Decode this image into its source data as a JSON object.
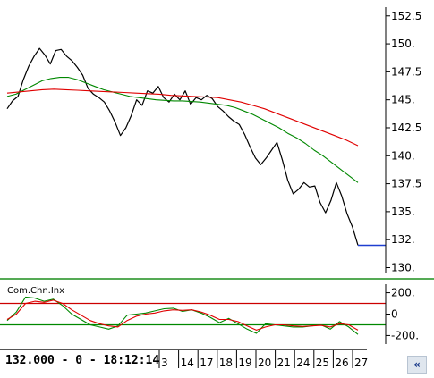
{
  "readout": "132.000 - 0 - 18:12:14",
  "nav_icon": "scroll-arrow-icon",
  "nav_glyph": "«",
  "chart_data": [
    {
      "type": "line",
      "panel": "price",
      "y_axis_side": "right",
      "y_ticks": [
        130,
        132.5,
        135,
        137.5,
        140,
        142.5,
        145,
        147.5,
        150,
        152.5
      ],
      "y_tick_labels": [
        "130.",
        "132.",
        "135.",
        "137.5",
        "140.",
        "142.5",
        "145.",
        "147.5",
        "150.",
        "152.5"
      ],
      "ylim": [
        129.4,
        153.6
      ],
      "last_price": 132.0,
      "grid": false,
      "series": [
        {
          "color": "#000000",
          "values": [
            144.2,
            144.9,
            145.3,
            146.8,
            148.0,
            148.9,
            149.6,
            149.0,
            148.2,
            149.4,
            149.5,
            148.9,
            148.5,
            147.9,
            147.2,
            146.0,
            145.5,
            145.2,
            144.8,
            144.0,
            143.0,
            141.8,
            142.5,
            143.6,
            145.0,
            144.5,
            145.8,
            145.6,
            146.2,
            145.2,
            144.8,
            145.5,
            145.0,
            145.8,
            144.6,
            145.2,
            145.0,
            145.4,
            145.1,
            144.4,
            144.0,
            143.5,
            143.1,
            142.8,
            141.9,
            140.8,
            139.8,
            139.2,
            139.8,
            140.5,
            141.2,
            139.6,
            137.8,
            136.6,
            137.0,
            137.6,
            137.2,
            137.3,
            135.8,
            134.9,
            136.0,
            137.6,
            136.4,
            134.8,
            133.6,
            132.0
          ]
        },
        {
          "color": "#008800",
          "values": [
            145.3,
            145.5,
            145.9,
            146.3,
            146.7,
            146.9,
            147.0,
            147.0,
            146.8,
            146.5,
            146.2,
            145.9,
            145.7,
            145.5,
            145.3,
            145.2,
            145.1,
            145.0,
            144.95,
            144.9,
            144.9,
            144.85,
            144.8,
            144.7,
            144.6,
            144.5,
            144.3,
            144.0,
            143.7,
            143.3,
            142.9,
            142.5,
            142.0,
            141.6,
            141.1,
            140.5,
            140.0,
            139.4,
            138.8,
            138.2,
            137.6
          ]
        },
        {
          "color": "#e00000",
          "values": [
            145.6,
            145.7,
            145.8,
            145.9,
            145.95,
            145.9,
            145.85,
            145.8,
            145.75,
            145.7,
            145.65,
            145.6,
            145.55,
            145.5,
            145.4,
            145.35,
            145.3,
            145.25,
            145.2,
            145.0,
            144.8,
            144.5,
            144.2,
            143.8,
            143.4,
            143.0,
            142.6,
            142.2,
            141.8,
            141.4,
            140.9
          ]
        }
      ]
    },
    {
      "type": "line",
      "panel": "indicator",
      "title": "Com.Chn.Inx",
      "y_axis_side": "right",
      "y_ticks": [
        200,
        0,
        -200
      ],
      "y_tick_labels": [
        "200.",
        "0",
        "-200."
      ],
      "ylim": [
        -280,
        280
      ],
      "reference_lines": [
        {
          "value": 100,
          "color": "#cc0000"
        },
        {
          "value": -100,
          "color": "#008800"
        }
      ],
      "series": [
        {
          "color": "#008800",
          "values": [
            -60,
            20,
            160,
            150,
            120,
            140,
            80,
            0,
            -50,
            -100,
            -120,
            -140,
            -110,
            -10,
            0,
            10,
            30,
            50,
            55,
            25,
            40,
            10,
            -30,
            -80,
            -40,
            -90,
            -140,
            -180,
            -90,
            -100,
            -110,
            -120,
            -120,
            -110,
            -100,
            -140,
            -70,
            -120,
            -190
          ]
        },
        {
          "color": "#e00000",
          "values": [
            -50,
            0,
            100,
            120,
            110,
            130,
            100,
            40,
            -10,
            -60,
            -90,
            -110,
            -120,
            -60,
            -20,
            0,
            10,
            30,
            40,
            35,
            40,
            20,
            -10,
            -50,
            -50,
            -70,
            -110,
            -150,
            -120,
            -100,
            -100,
            -110,
            -115,
            -110,
            -105,
            -120,
            -90,
            -100,
            -150
          ]
        }
      ]
    },
    {
      "type": "table",
      "panel": "date-axis",
      "tick_labels": [
        "3",
        "14",
        "17",
        "18",
        "19",
        "20",
        "21",
        "24",
        "25",
        "26",
        "27"
      ]
    }
  ]
}
